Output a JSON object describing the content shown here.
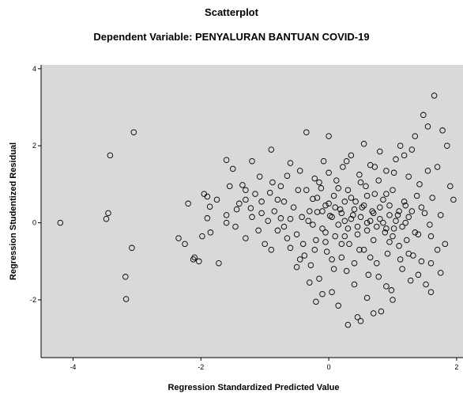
{
  "chart_data": {
    "type": "scatter",
    "title": "Scatterplot",
    "subtitle": "Dependent Variable: PENYALURAN BANTUAN COVID-19",
    "xlabel": "Regression Standardized Predicted Value",
    "ylabel": "Regression Studentized Residual",
    "xlim": [
      -4.5,
      2.1
    ],
    "ylim": [
      -3.5,
      4.1
    ],
    "xticks": [
      -4,
      -2,
      0,
      2
    ],
    "yticks": [
      4,
      2,
      0,
      -2
    ],
    "grid": false,
    "colors": {
      "plot_background": "#d9d9d9",
      "marker": "#000000"
    },
    "points": [
      [
        -4.2,
        0.0
      ],
      [
        -3.42,
        1.75
      ],
      [
        -3.45,
        0.25
      ],
      [
        -3.48,
        0.1
      ],
      [
        -3.05,
        2.35
      ],
      [
        -3.08,
        -0.65
      ],
      [
        -3.18,
        -1.4
      ],
      [
        -3.17,
        -1.98
      ],
      [
        -2.25,
        -0.55
      ],
      [
        -2.1,
        -0.9
      ],
      [
        -2.03,
        -1.0
      ],
      [
        -2.12,
        -0.95
      ],
      [
        -1.9,
        0.68
      ],
      [
        -1.86,
        0.42
      ],
      [
        -1.9,
        0.12
      ],
      [
        -1.72,
        -1.05
      ],
      [
        -1.6,
        1.63
      ],
      [
        -1.46,
        -0.1
      ],
      [
        -1.44,
        0.35
      ],
      [
        -1.85,
        -0.25
      ],
      [
        -1.6,
        0.2
      ],
      [
        -1.75,
        0.6
      ],
      [
        -1.98,
        -0.35
      ],
      [
        -1.55,
        0.95
      ],
      [
        -1.35,
        0.98
      ],
      [
        -1.3,
        0.6
      ],
      [
        -1.22,
        0.38
      ],
      [
        -1.15,
        0.75
      ],
      [
        -1.08,
        1.2
      ],
      [
        -1.05,
        0.25
      ],
      [
        -1.0,
        -0.55
      ],
      [
        -0.92,
        0.78
      ],
      [
        -0.88,
        1.05
      ],
      [
        -0.8,
        -0.2
      ],
      [
        -0.75,
        0.12
      ],
      [
        -0.7,
        0.55
      ],
      [
        -0.65,
        1.22
      ],
      [
        -0.6,
        -0.65
      ],
      [
        -0.55,
        0.4
      ],
      [
        -0.5,
        -0.3
      ],
      [
        -0.48,
        0.85
      ],
      [
        -0.45,
        1.35
      ],
      [
        -0.42,
        0.15
      ],
      [
        -0.38,
        -0.85
      ],
      [
        -0.35,
        2.35
      ],
      [
        -0.32,
        0.05
      ],
      [
        -0.28,
        -1.1
      ],
      [
        -0.25,
        0.62
      ],
      [
        -0.22,
        1.15
      ],
      [
        -0.2,
        -0.45
      ],
      [
        -0.18,
        0.28
      ],
      [
        -0.15,
        -1.45
      ],
      [
        -0.12,
        0.9
      ],
      [
        -0.1,
        -0.15
      ],
      [
        -0.08,
        1.6
      ],
      [
        -0.05,
        0.45
      ],
      [
        -0.03,
        -0.75
      ],
      [
        0.0,
        2.25
      ],
      [
        0.02,
        0.18
      ],
      [
        0.05,
        -1.8
      ],
      [
        0.08,
        0.7
      ],
      [
        0.1,
        -0.35
      ],
      [
        0.12,
        1.1
      ],
      [
        0.15,
        -2.15
      ],
      [
        0.18,
        0.35
      ],
      [
        0.2,
        -0.9
      ],
      [
        0.22,
        1.45
      ],
      [
        0.25,
        0.05
      ],
      [
        0.28,
        -1.25
      ],
      [
        0.3,
        0.85
      ],
      [
        0.32,
        -0.55
      ],
      [
        0.35,
        1.75
      ],
      [
        0.38,
        0.2
      ],
      [
        0.4,
        -1.6
      ],
      [
        0.42,
        0.55
      ],
      [
        0.45,
        -0.1
      ],
      [
        0.48,
        1.25
      ],
      [
        0.5,
        -2.55
      ],
      [
        0.52,
        0.4
      ],
      [
        0.55,
        -0.7
      ],
      [
        0.58,
        0.95
      ],
      [
        0.6,
        0.0
      ],
      [
        0.62,
        -1.35
      ],
      [
        0.65,
        1.5
      ],
      [
        0.68,
        0.3
      ],
      [
        0.7,
        -0.45
      ],
      [
        0.72,
        0.75
      ],
      [
        0.75,
        -1.05
      ],
      [
        0.78,
        1.1
      ],
      [
        0.8,
        0.1
      ],
      [
        0.82,
        -2.3
      ],
      [
        0.85,
        0.6
      ],
      [
        0.88,
        -0.25
      ],
      [
        0.9,
        1.35
      ],
      [
        0.92,
        -0.8
      ],
      [
        0.95,
        0.45
      ],
      [
        0.98,
        -1.75
      ],
      [
        1.0,
        0.85
      ],
      [
        1.02,
        -0.15
      ],
      [
        1.05,
        1.65
      ],
      [
        1.08,
        0.2
      ],
      [
        1.1,
        -0.6
      ],
      [
        1.12,
        2.0
      ],
      [
        1.15,
        -1.2
      ],
      [
        1.18,
        0.55
      ],
      [
        1.2,
        0.0
      ],
      [
        1.22,
        -0.45
      ],
      [
        1.25,
        1.2
      ],
      [
        1.28,
        -1.5
      ],
      [
        1.3,
        0.3
      ],
      [
        1.32,
        -0.85
      ],
      [
        1.35,
        2.25
      ],
      [
        1.38,
        0.7
      ],
      [
        1.4,
        -0.3
      ],
      [
        1.42,
        1.0
      ],
      [
        1.45,
        -1.0
      ],
      [
        1.48,
        2.8
      ],
      [
        1.5,
        0.25
      ],
      [
        1.52,
        -1.6
      ],
      [
        1.55,
        1.35
      ],
      [
        1.58,
        -0.05
      ],
      [
        1.62,
        0.65
      ],
      [
        1.65,
        3.3
      ],
      [
        1.7,
        1.45
      ],
      [
        1.75,
        0.2
      ],
      [
        1.78,
        2.4
      ],
      [
        1.82,
        -0.55
      ],
      [
        1.85,
        2.0
      ],
      [
        1.95,
        0.6
      ],
      [
        -0.3,
        0.3
      ],
      [
        -0.25,
        -0.05
      ],
      [
        -0.18,
        0.65
      ],
      [
        -0.1,
        0.3
      ],
      [
        -0.05,
        -0.25
      ],
      [
        0.0,
        0.5
      ],
      [
        0.05,
        0.15
      ],
      [
        0.1,
        0.4
      ],
      [
        0.15,
        -0.05
      ],
      [
        0.2,
        0.25
      ],
      [
        0.25,
        0.55
      ],
      [
        0.3,
        -0.15
      ],
      [
        0.35,
        0.1
      ],
      [
        0.4,
        0.35
      ],
      [
        0.45,
        -0.3
      ],
      [
        0.5,
        0.15
      ],
      [
        0.55,
        0.45
      ],
      [
        0.6,
        -0.2
      ],
      [
        0.65,
        0.05
      ],
      [
        0.7,
        0.25
      ],
      [
        0.75,
        -0.1
      ],
      [
        0.8,
        0.4
      ],
      [
        0.85,
        0.0
      ],
      [
        0.9,
        -0.15
      ],
      [
        0.95,
        0.2
      ],
      [
        1.0,
        -0.35
      ],
      [
        1.05,
        0.05
      ],
      [
        1.1,
        0.3
      ],
      [
        1.15,
        -0.1
      ],
      [
        1.2,
        0.45
      ],
      [
        1.25,
        0.15
      ],
      [
        -0.6,
        0.1
      ],
      [
        -0.7,
        -0.1
      ],
      [
        -0.85,
        0.3
      ],
      [
        -0.95,
        0.05
      ],
      [
        -1.1,
        -0.2
      ],
      [
        -1.2,
        0.15
      ],
      [
        -1.3,
        -0.4
      ],
      [
        -1.4,
        0.5
      ],
      [
        -0.4,
        -0.55
      ],
      [
        -0.3,
        -1.55
      ],
      [
        -0.2,
        -2.05
      ],
      [
        -0.1,
        -1.85
      ],
      [
        0.3,
        -2.65
      ],
      [
        0.45,
        -2.45
      ],
      [
        0.6,
        -1.95
      ],
      [
        0.7,
        -2.35
      ],
      [
        0.9,
        -1.65
      ],
      [
        1.0,
        -2.0
      ],
      [
        1.6,
        -1.05
      ],
      [
        1.7,
        -0.7
      ],
      [
        1.9,
        0.95
      ],
      [
        -1.5,
        1.4
      ],
      [
        -1.2,
        1.6
      ],
      [
        -0.9,
        1.9
      ],
      [
        -0.6,
        1.55
      ],
      [
        0.55,
        2.05
      ],
      [
        0.8,
        1.85
      ],
      [
        1.3,
        1.9
      ],
      [
        1.55,
        2.5
      ],
      [
        -2.35,
        -0.4
      ],
      [
        -1.95,
        0.75
      ],
      [
        -2.2,
        0.5
      ],
      [
        -0.9,
        -0.7
      ],
      [
        -0.5,
        -1.15
      ],
      [
        0.2,
        -0.55
      ],
      [
        0.4,
        -1.05
      ],
      [
        0.35,
        0.65
      ],
      [
        0.6,
        0.7
      ],
      [
        0.25,
        -0.35
      ],
      [
        0.15,
        0.9
      ],
      [
        -0.05,
        -0.5
      ],
      [
        1.35,
        -0.25
      ],
      [
        1.45,
        0.4
      ],
      [
        1.6,
        -0.35
      ],
      [
        1.75,
        -1.3
      ],
      [
        1.25,
        -0.8
      ],
      [
        0.95,
        -0.5
      ],
      [
        0.65,
        -0.9
      ],
      [
        -0.15,
        1.05
      ],
      [
        -0.35,
        0.85
      ],
      [
        0.0,
        1.3
      ],
      [
        0.28,
        1.6
      ],
      [
        0.5,
        1.05
      ],
      [
        0.72,
        1.45
      ],
      [
        1.02,
        1.3
      ],
      [
        1.18,
        1.75
      ],
      [
        -0.45,
        -0.95
      ],
      [
        -0.22,
        -0.7
      ],
      [
        0.08,
        -1.2
      ],
      [
        0.48,
        -0.7
      ],
      [
        0.78,
        -1.4
      ],
      [
        1.12,
        -0.95
      ],
      [
        1.4,
        -1.35
      ],
      [
        1.6,
        -1.8
      ],
      [
        -1.6,
        0.0
      ],
      [
        -1.3,
        0.85
      ],
      [
        -1.05,
        0.55
      ],
      [
        -0.8,
        0.6
      ],
      [
        -0.65,
        -0.4
      ],
      [
        -0.75,
        0.95
      ],
      [
        0.05,
        -0.95
      ],
      [
        0.9,
        0.75
      ]
    ]
  }
}
